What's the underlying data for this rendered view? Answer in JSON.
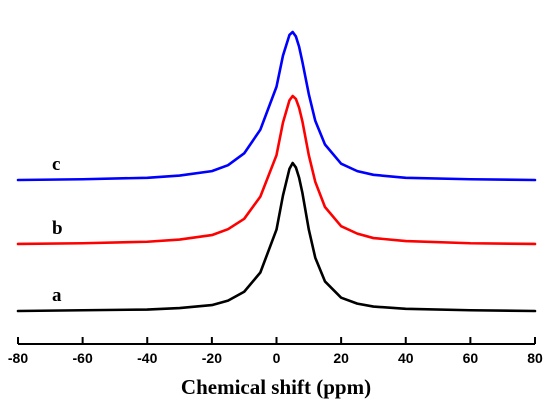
{
  "chart_data": {
    "type": "line",
    "title": "",
    "xlabel": "Chemical shift (ppm)",
    "ylabel": "",
    "xlim": [
      -80,
      80
    ],
    "x_ticks": [
      -80,
      -60,
      -40,
      -20,
      0,
      20,
      40,
      60,
      80
    ],
    "y_axis": "hidden",
    "grid": false,
    "legend": "none",
    "series": [
      {
        "name": "a",
        "color": "#000000",
        "baseline": 0,
        "x": [
          -80,
          -60,
          -40,
          -30,
          -20,
          -15,
          -10,
          -5,
          0,
          2,
          4,
          5,
          6,
          7,
          8,
          10,
          12,
          15,
          20,
          25,
          30,
          40,
          60,
          80
        ],
        "y": [
          0,
          0.005,
          0.01,
          0.02,
          0.04,
          0.07,
          0.13,
          0.26,
          0.55,
          0.78,
          0.96,
          1.0,
          0.97,
          0.9,
          0.8,
          0.55,
          0.36,
          0.2,
          0.09,
          0.05,
          0.03,
          0.015,
          0.005,
          0
        ]
      },
      {
        "name": "b",
        "color": "#ff0000",
        "baseline": 0.44,
        "x": [
          -80,
          -60,
          -40,
          -30,
          -20,
          -15,
          -10,
          -5,
          0,
          2,
          4,
          5,
          6,
          7,
          8,
          10,
          12,
          15,
          20,
          25,
          30,
          40,
          60,
          80
        ],
        "y": [
          0,
          0.005,
          0.015,
          0.03,
          0.06,
          0.1,
          0.17,
          0.32,
          0.6,
          0.82,
          0.97,
          1.0,
          0.98,
          0.92,
          0.83,
          0.6,
          0.42,
          0.25,
          0.12,
          0.07,
          0.04,
          0.02,
          0.005,
          0
        ]
      },
      {
        "name": "c",
        "color": "#0000ff",
        "baseline": 0.86,
        "x": [
          -80,
          -60,
          -40,
          -30,
          -20,
          -15,
          -10,
          -5,
          0,
          2,
          4,
          5,
          6,
          7,
          8,
          10,
          12,
          15,
          20,
          25,
          30,
          40,
          60,
          80
        ],
        "y": [
          0,
          0.005,
          0.015,
          0.03,
          0.06,
          0.1,
          0.18,
          0.34,
          0.63,
          0.84,
          0.98,
          1.0,
          0.97,
          0.9,
          0.8,
          0.58,
          0.4,
          0.24,
          0.11,
          0.06,
          0.035,
          0.015,
          0.005,
          0
        ]
      }
    ]
  }
}
